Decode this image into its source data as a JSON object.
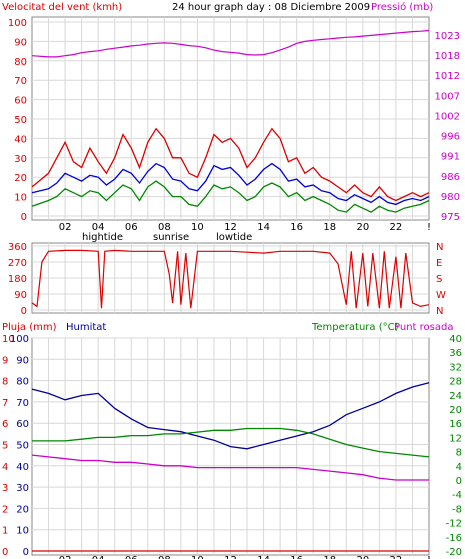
{
  "colors": {
    "wind_avg": "#0000dd",
    "wind_gust": "#dd0000",
    "wind_min": "#008800",
    "pressure": "#cc00cc",
    "wind_dir": "#dd0000",
    "rain": "#dd0000",
    "humidity": "#000099",
    "temperature": "#008800",
    "dewpoint": "#cc00cc",
    "grid": "#d8d8d8",
    "axis": "#000000",
    "left_text": "#dd0000",
    "right_text": "#cc00cc",
    "temp_text": "#008800",
    "humidity_text": "#000099"
  },
  "panels": {
    "top": {
      "title": "24 hour graph day : 08 Diciembre 2009",
      "left_label": "Velocitat del vent (kmh)",
      "right_label": "Pressió (mb)",
      "left_ticks": [
        "0",
        "10",
        "20",
        "30",
        "40",
        "50",
        "60",
        "70",
        "80",
        "90",
        "100"
      ],
      "right_ticks": [
        "975",
        "980",
        "986",
        "991",
        "996",
        "1002",
        "1007",
        "1012",
        "1018",
        "1023"
      ]
    },
    "middle": {
      "left_ticks": [
        "0",
        "90",
        "180",
        "270",
        "360"
      ],
      "right_ticks": [
        "N",
        "E",
        "S",
        "W",
        "N"
      ]
    },
    "bottom": {
      "left_label": "Pluja (mm)",
      "humidity_label": "Humitat",
      "temp_label": "Temperatura (°C)",
      "dew_label": "Punt rosada",
      "rain_ticks": [
        "0",
        "1",
        "2",
        "3",
        "4",
        "5",
        "6",
        "7",
        "8",
        "9",
        "10"
      ],
      "humidity_ticks": [
        "0",
        "10",
        "20",
        "30",
        "40",
        "50",
        "60",
        "70",
        "80",
        "90",
        "100"
      ],
      "temp_ticks": [
        "-20",
        "-16",
        "-12",
        "-8",
        "-4",
        "0",
        "4",
        "8",
        "12",
        "16",
        "20",
        "24",
        "28",
        "32",
        "36",
        "40"
      ]
    },
    "time_labels": [
      "02",
      "04",
      "06",
      "08",
      "10",
      "12",
      "14",
      "16",
      "18",
      "20",
      "22",
      "!"
    ],
    "markers": {
      "hightide": "hightide",
      "sunrise": "sunrise",
      "lowtide": "lowtide"
    }
  },
  "chart_data": [
    {
      "type": "line",
      "title": "24 hour graph day : 08 Diciembre 2009",
      "ylabel": "Velocitat del vent (kmh)",
      "ylim": [
        0,
        100
      ],
      "x_hours": [
        0,
        1,
        1.5,
        2,
        2.5,
        3,
        3.5,
        4,
        4.5,
        5,
        5.5,
        6,
        6.5,
        7,
        7.5,
        8,
        8.5,
        9,
        9.5,
        10,
        10.5,
        11,
        11.5,
        12,
        12.5,
        13,
        13.5,
        14,
        14.5,
        15,
        15.5,
        16,
        16.5,
        17,
        17.5,
        18,
        18.5,
        19,
        19.5,
        20,
        20.5,
        21,
        21.5,
        22,
        22.5,
        23,
        23.5,
        24
      ],
      "series": [
        {
          "name": "wind_gust",
          "values": [
            15,
            22,
            30,
            38,
            28,
            25,
            35,
            28,
            22,
            30,
            42,
            35,
            25,
            38,
            45,
            40,
            30,
            30,
            22,
            20,
            30,
            42,
            38,
            40,
            35,
            25,
            30,
            38,
            45,
            40,
            28,
            30,
            22,
            25,
            20,
            18,
            15,
            12,
            16,
            12,
            10,
            15,
            10,
            8,
            10,
            12,
            10,
            12
          ]
        },
        {
          "name": "wind_avg",
          "values": [
            12,
            14,
            17,
            22,
            20,
            18,
            21,
            20,
            16,
            19,
            24,
            22,
            17,
            23,
            27,
            25,
            19,
            18,
            14,
            13,
            18,
            26,
            24,
            25,
            21,
            16,
            19,
            24,
            27,
            24,
            18,
            19,
            15,
            16,
            13,
            12,
            9,
            8,
            11,
            9,
            7,
            10,
            7,
            6,
            8,
            9,
            8,
            10
          ]
        },
        {
          "name": "wind_min",
          "values": [
            5,
            8,
            10,
            14,
            12,
            10,
            13,
            12,
            8,
            12,
            16,
            14,
            8,
            15,
            18,
            15,
            10,
            10,
            6,
            5,
            10,
            16,
            14,
            15,
            12,
            8,
            10,
            15,
            17,
            15,
            10,
            12,
            8,
            10,
            8,
            6,
            3,
            2,
            6,
            4,
            2,
            5,
            3,
            2,
            4,
            5,
            6,
            8
          ]
        },
        {
          "name": "pressure",
          "values": [
            1017.5,
            1017.2,
            1017.2,
            1017.5,
            1017.8,
            1018.3,
            1018.6,
            1018.8,
            1019.2,
            1019.5,
            1019.8,
            1020.1,
            1020.3,
            1020.6,
            1020.8,
            1020.9,
            1020.8,
            1020.5,
            1020.2,
            1020.0,
            1019.6,
            1019.0,
            1018.6,
            1018.4,
            1018.2,
            1017.8,
            1017.7,
            1017.8,
            1018.3,
            1019.0,
            1019.8,
            1020.8,
            1021.3,
            1021.6,
            1021.8,
            1022.0,
            1022.2,
            1022.4,
            1022.5,
            1022.7,
            1022.9,
            1023.1,
            1023.3,
            1023.5,
            1023.7,
            1023.9,
            1024.0,
            1024.2
          ]
        }
      ]
    },
    {
      "type": "line",
      "ylabel": "wind direction",
      "ylim": [
        0,
        360
      ],
      "x_hours": [
        0,
        0.3,
        0.6,
        1,
        2,
        3,
        4,
        4.2,
        4.4,
        5,
        6,
        7,
        8,
        8.3,
        8.5,
        8.8,
        9,
        9.3,
        9.6,
        10,
        11,
        12,
        13,
        14,
        15,
        16,
        17,
        18,
        18.5,
        19,
        19.3,
        19.6,
        20,
        20.3,
        20.6,
        21,
        21.3,
        21.6,
        22,
        22.3,
        22.6,
        23,
        23.5,
        24
      ],
      "series": [
        {
          "name": "wind_direction",
          "values": [
            40,
            20,
            270,
            330,
            335,
            335,
            330,
            10,
            330,
            335,
            330,
            330,
            330,
            200,
            40,
            330,
            30,
            320,
            10,
            330,
            330,
            330,
            325,
            320,
            330,
            330,
            330,
            320,
            260,
            30,
            330,
            10,
            320,
            20,
            320,
            10,
            330,
            10,
            300,
            10,
            320,
            40,
            20,
            30
          ]
        }
      ]
    },
    {
      "type": "line",
      "ylabel": "Humitat / Temperatura (°C)",
      "humidity_ylim": [
        0,
        100
      ],
      "temp_ylim": [
        -20,
        40
      ],
      "rain_ylim": [
        0,
        10
      ],
      "x_hours": [
        0,
        1,
        2,
        3,
        4,
        5,
        6,
        7,
        8,
        9,
        10,
        11,
        12,
        13,
        14,
        15,
        16,
        17,
        18,
        19,
        20,
        21,
        22,
        23,
        24
      ],
      "series": [
        {
          "name": "humidity",
          "values": [
            76,
            74,
            71,
            73,
            74,
            67,
            62,
            58,
            57,
            56,
            54,
            52,
            49,
            48,
            50,
            52,
            54,
            56,
            59,
            64,
            67,
            70,
            74,
            77,
            79
          ]
        },
        {
          "name": "temperature",
          "values": [
            11,
            11,
            11,
            11.5,
            12,
            12,
            12.5,
            12.5,
            13,
            13,
            13.5,
            14,
            14,
            14.5,
            14.5,
            14.5,
            14,
            13,
            11.5,
            10,
            9,
            8,
            7.5,
            7,
            6.5
          ]
        },
        {
          "name": "dewpoint",
          "values": [
            7,
            6.5,
            6,
            5.5,
            5.5,
            5,
            5,
            4.5,
            4,
            4,
            3.5,
            3.5,
            3.5,
            3.5,
            3.5,
            3.5,
            3.5,
            3,
            2.5,
            2,
            1.5,
            0.5,
            0,
            0,
            0
          ]
        },
        {
          "name": "rain",
          "values": [
            0,
            0,
            0,
            0,
            0,
            0,
            0,
            0,
            0,
            0,
            0,
            0,
            0,
            0,
            0,
            0,
            0,
            0,
            0,
            0,
            0,
            0,
            0,
            0,
            0
          ]
        }
      ]
    }
  ]
}
